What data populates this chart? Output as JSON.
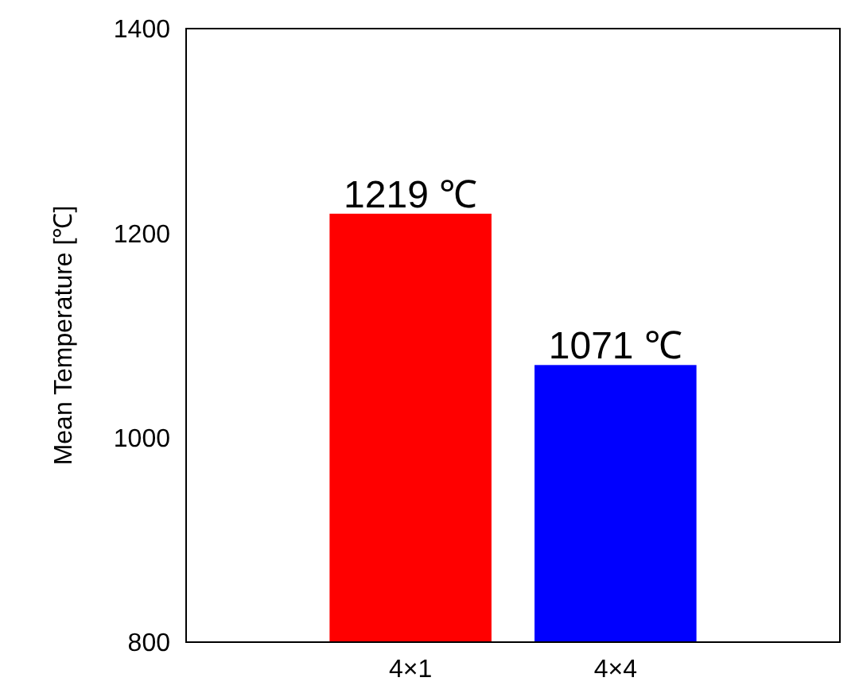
{
  "chart_data": {
    "type": "bar",
    "ylabel": "Mean Temperature [℃]",
    "categories": [
      "4×1",
      "4×4"
    ],
    "values": [
      1219,
      1071
    ],
    "colors": [
      "#ff0000",
      "#0000ff"
    ],
    "value_labels": [
      "1219 ℃",
      "1071 ℃"
    ],
    "ylim": [
      800,
      1400
    ],
    "yticks": [
      800,
      1000,
      1200,
      1400
    ],
    "grid": false
  }
}
